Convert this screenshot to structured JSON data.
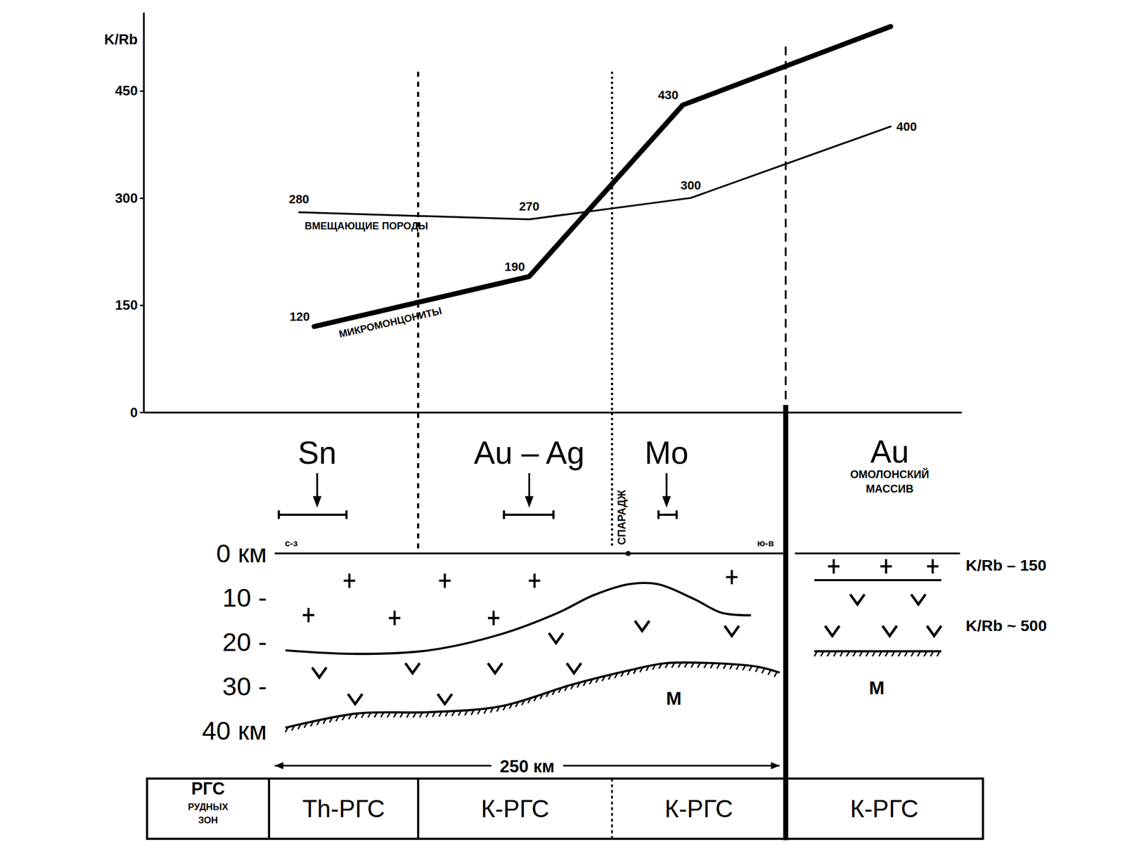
{
  "chart_data": {
    "type": "line",
    "y_label": "K/Rb",
    "xlim": [
      -65,
      340
    ],
    "ylim": [
      0,
      560
    ],
    "yticks": [
      0,
      150,
      300,
      450
    ],
    "tick_labels": "y",
    "data_labels": true,
    "series": [
      {
        "name": "ВМЕЩАЮЩИЕ ПОРОДЫ",
        "color": "#000000",
        "line_style": "thin",
        "x": [
          12,
          126,
          206,
          305
        ],
        "values": [
          280,
          270,
          300,
          400
        ],
        "value_labels": [
          "280",
          "270",
          "300",
          "400"
        ]
      },
      {
        "name": "МИКРОМОНЦОНИТЫ",
        "color": "#000000",
        "line_style": "thick",
        "x": [
          19.5,
          126,
          202,
          305
        ],
        "values": [
          120,
          190,
          430,
          540
        ],
        "value_labels": [
          "120",
          "190",
          "430",
          null
        ]
      }
    ]
  },
  "section": {
    "depth_lim": [
      0,
      40
    ],
    "depth_ticks": [
      {
        "value": 0,
        "label": "0 км"
      },
      {
        "value": 10,
        "label": "10 -"
      },
      {
        "value": 20,
        "label": "20 -"
      },
      {
        "value": 30,
        "label": "30 -"
      },
      {
        "value": 40,
        "label": "40 км"
      }
    ],
    "left_end_label": "с-з",
    "right_end_label": "ю-в",
    "boundaries_km": [
      71,
      167,
      253
    ],
    "granite_base": {
      "km": [
        5.3,
        40.8,
        76.2,
        111.7,
        140,
        157.8,
        175.5,
        189.7,
        207.4,
        221.6,
        235.8
      ],
      "depth": [
        21.8,
        22.6,
        21.8,
        18.2,
        13.4,
        9.4,
        6.9,
        6.9,
        10.2,
        13.4,
        13.9
      ]
    },
    "moho": {
      "label": "M",
      "km": [
        5.3,
        40.8,
        76.2,
        111.7,
        147.2,
        175.5,
        193.3,
        218.1,
        239.4,
        250
      ],
      "depth": [
        39.2,
        36.0,
        35.7,
        34.4,
        29.5,
        26.3,
        24.7,
        24.7,
        25.5,
        26.8
      ]
    },
    "scale_bar": {
      "label": "250 км",
      "km": 250
    },
    "place": {
      "label": "СПАРАДЖ",
      "km": 175
    },
    "ore_zones": [
      {
        "label": "Sn",
        "from_km": 2,
        "to_km": 35.5,
        "arrow_km": 21
      },
      {
        "label": "Au – Ag",
        "from_km": 113.5,
        "to_km": 138,
        "arrow_km": 126
      },
      {
        "label": "Mo",
        "from_km": 190,
        "to_km": 199,
        "arrow_km": 194
      }
    ],
    "right_panel": {
      "title": "Au",
      "subtitle": "ОМОЛОНСКИЙ МАССИВ",
      "upper_label": "K/Rb – 150",
      "lower_label": "K/Rb ~ 500",
      "moho_label": "M",
      "upper_base_km": 6,
      "moho_km": 22
    }
  },
  "table": {
    "header": "РГС РУДНЫХ ЗОН",
    "cells": [
      "Th-РГС",
      "К-РГС",
      "К-РГС",
      "К-РГС"
    ]
  }
}
